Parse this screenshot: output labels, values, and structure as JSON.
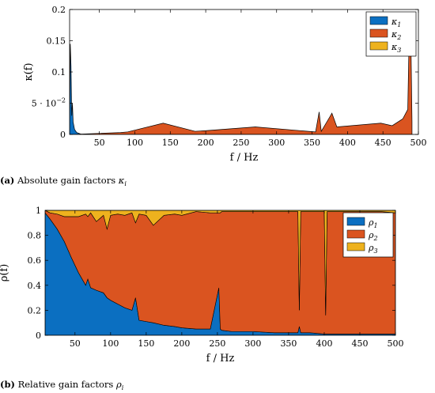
{
  "chart_data": [
    {
      "type": "area",
      "caption_tag": "(a)",
      "caption": "Absolute gain factors κi",
      "xlabel": "f / Hz",
      "ylabel": "κ(f)",
      "xlim": [
        8,
        500
      ],
      "ylim": [
        0,
        0.2
      ],
      "xticks": [
        50,
        100,
        150,
        200,
        250,
        300,
        350,
        400,
        450,
        500
      ],
      "xtick_labels": [
        "50",
        "100",
        "150",
        "200",
        "250",
        "300",
        "350",
        "400",
        "450",
        "500"
      ],
      "yticks": [
        0,
        0.05,
        0.1,
        0.15,
        0.2
      ],
      "ytick_labels": [
        "0",
        "5 · 10−2",
        "0.1",
        "0.15",
        "0.2"
      ],
      "legend": [
        "κ1",
        "κ2",
        "κ3"
      ],
      "legend_position": "top-right",
      "colors": [
        "#0B6FC1",
        "#DA5420",
        "#EEB21E"
      ],
      "series": [
        {
          "name": "κ1",
          "x": [
            8,
            9,
            10,
            11,
            12,
            13,
            15,
            18,
            25,
            40,
            490
          ],
          "y": [
            0.01,
            0.145,
            0.11,
            0.03,
            0.05,
            0.02,
            0.008,
            0.003,
            0.0,
            0.0,
            0.0
          ]
        },
        {
          "name": "κ2",
          "x": [
            8,
            12,
            80,
            90,
            140,
            185,
            200,
            270,
            355,
            360,
            363,
            375,
            378,
            385,
            447,
            463,
            478,
            485,
            487,
            489,
            491
          ],
          "y": [
            0.0,
            0.0,
            0.003,
            0.004,
            0.018,
            0.005,
            0.006,
            0.012,
            0.004,
            0.036,
            0.005,
            0.028,
            0.034,
            0.012,
            0.018,
            0.014,
            0.025,
            0.04,
            0.16,
            0.19,
            0.02
          ]
        },
        {
          "name": "κ3",
          "x": [
            8,
            500
          ],
          "y": [
            0.0,
            0.0
          ]
        }
      ]
    },
    {
      "type": "area",
      "stacked": true,
      "caption_tag": "(b)",
      "caption": "Relative gain factors ρi",
      "xlabel": "f / Hz",
      "ylabel": "ρ(f)",
      "xlim": [
        8,
        500
      ],
      "ylim": [
        0,
        1
      ],
      "xticks": [
        50,
        100,
        150,
        200,
        250,
        300,
        350,
        400,
        450,
        500
      ],
      "xtick_labels": [
        "50",
        "100",
        "150",
        "200",
        "250",
        "300",
        "350",
        "400",
        "450",
        "500"
      ],
      "yticks": [
        0,
        0.2,
        0.4,
        0.6,
        0.8,
        1
      ],
      "ytick_labels": [
        "0",
        "0.2",
        "0.4",
        "0.6",
        "0.8",
        "1"
      ],
      "legend": [
        "ρ1",
        "ρ2",
        "ρ3"
      ],
      "legend_position": "top-right",
      "colors": [
        "#0B6FC1",
        "#DA5420",
        "#EEB21E"
      ],
      "x": [
        8,
        15,
        25,
        35,
        45,
        55,
        65,
        68,
        72,
        80,
        90,
        95,
        100,
        110,
        120,
        130,
        135,
        140,
        150,
        160,
        175,
        190,
        200,
        220,
        240,
        252,
        254,
        256,
        270,
        300,
        330,
        350,
        363,
        365,
        367,
        380,
        400,
        402,
        404,
        420,
        450,
        480,
        500
      ],
      "series": [
        {
          "name": "ρ1",
          "values": [
            0.98,
            0.93,
            0.85,
            0.75,
            0.62,
            0.5,
            0.4,
            0.45,
            0.38,
            0.36,
            0.34,
            0.3,
            0.28,
            0.25,
            0.22,
            0.2,
            0.3,
            0.12,
            0.11,
            0.1,
            0.08,
            0.07,
            0.06,
            0.05,
            0.05,
            0.38,
            0.05,
            0.04,
            0.03,
            0.03,
            0.02,
            0.02,
            0.02,
            0.07,
            0.02,
            0.02,
            0.01,
            0.01,
            0.01,
            0.01,
            0.01,
            0.01,
            0.01
          ]
        },
        {
          "name": "ρ2",
          "values": [
            0.02,
            0.05,
            0.12,
            0.2,
            0.33,
            0.45,
            0.57,
            0.5,
            0.6,
            0.55,
            0.62,
            0.55,
            0.68,
            0.72,
            0.74,
            0.78,
            0.6,
            0.85,
            0.85,
            0.78,
            0.88,
            0.9,
            0.9,
            0.94,
            0.93,
            0.6,
            0.93,
            0.95,
            0.96,
            0.96,
            0.97,
            0.97,
            0.97,
            0.13,
            0.97,
            0.97,
            0.98,
            0.15,
            0.98,
            0.98,
            0.98,
            0.98,
            0.97
          ]
        },
        {
          "name": "ρ3",
          "values": [
            0.0,
            0.02,
            0.03,
            0.05,
            0.05,
            0.05,
            0.03,
            0.05,
            0.02,
            0.09,
            0.04,
            0.15,
            0.04,
            0.03,
            0.04,
            0.02,
            0.1,
            0.03,
            0.04,
            0.12,
            0.04,
            0.03,
            0.04,
            0.01,
            0.02,
            0.02,
            0.02,
            0.01,
            0.01,
            0.01,
            0.01,
            0.01,
            0.01,
            0.8,
            0.01,
            0.01,
            0.01,
            0.84,
            0.01,
            0.01,
            0.01,
            0.01,
            0.02
          ]
        }
      ]
    }
  ]
}
